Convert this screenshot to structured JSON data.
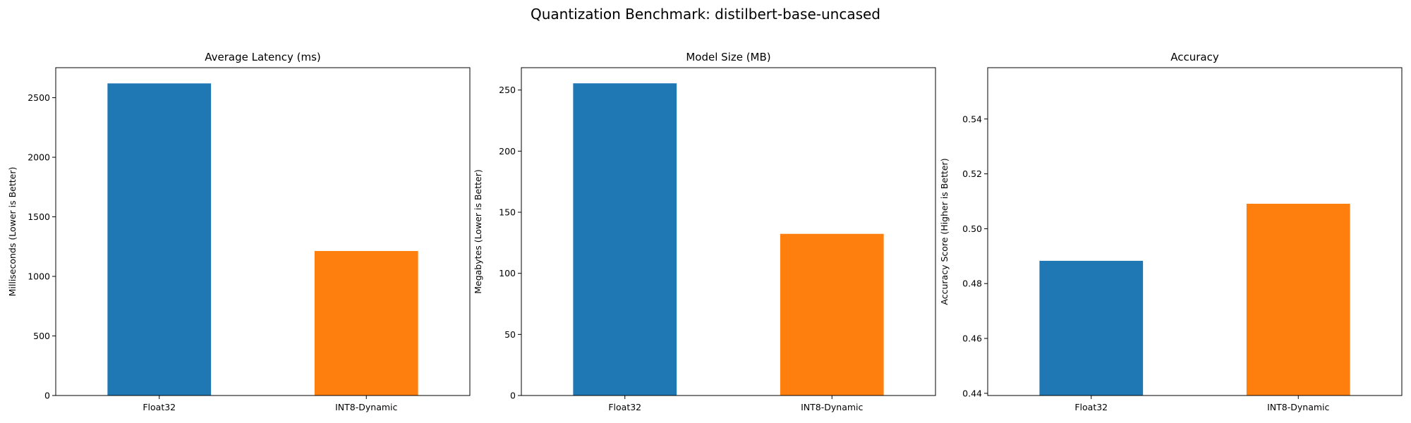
{
  "figure": {
    "title": "Quantization Benchmark: distilbert-base-uncased"
  },
  "chart_data": [
    {
      "type": "bar",
      "title": "Average Latency (ms)",
      "xlabel": "",
      "ylabel": "Milliseconds (Lower is Better)",
      "categories": [
        "Float32",
        "INT8-Dynamic"
      ],
      "values": [
        2620,
        1213
      ],
      "colors": [
        "#1f77b4",
        "#ff7f0e"
      ],
      "ylim": [
        0,
        2752
      ],
      "yticks": [
        0,
        500,
        1000,
        1500,
        2000,
        2500
      ],
      "ytick_labels": [
        "0",
        "500",
        "1000",
        "1500",
        "2000",
        "2500"
      ],
      "grid": false,
      "legend": "none"
    },
    {
      "type": "bar",
      "title": "Model Size (MB)",
      "xlabel": "",
      "ylabel": "Megabytes (Lower is Better)",
      "categories": [
        "Float32",
        "INT8-Dynamic"
      ],
      "values": [
        255.5,
        132.3
      ],
      "colors": [
        "#1f77b4",
        "#ff7f0e"
      ],
      "ylim": [
        0,
        268.3
      ],
      "yticks": [
        0,
        50,
        100,
        150,
        200,
        250
      ],
      "ytick_labels": [
        "0",
        "50",
        "100",
        "150",
        "200",
        "250"
      ],
      "grid": false,
      "legend": "none"
    },
    {
      "type": "bar",
      "title": "Accuracy",
      "xlabel": "",
      "ylabel": "Accuracy Score (Higher is Better)",
      "categories": [
        "Float32",
        "INT8-Dynamic"
      ],
      "values": [
        0.4883,
        0.5091
      ],
      "colors": [
        "#1f77b4",
        "#ff7f0e"
      ],
      "ylim": [
        0.4392,
        0.5587
      ],
      "yticks": [
        0.44,
        0.46,
        0.48,
        0.5,
        0.52,
        0.54
      ],
      "ytick_labels": [
        "0.44",
        "0.46",
        "0.48",
        "0.50",
        "0.52",
        "0.54"
      ],
      "grid": false,
      "legend": "none"
    }
  ]
}
